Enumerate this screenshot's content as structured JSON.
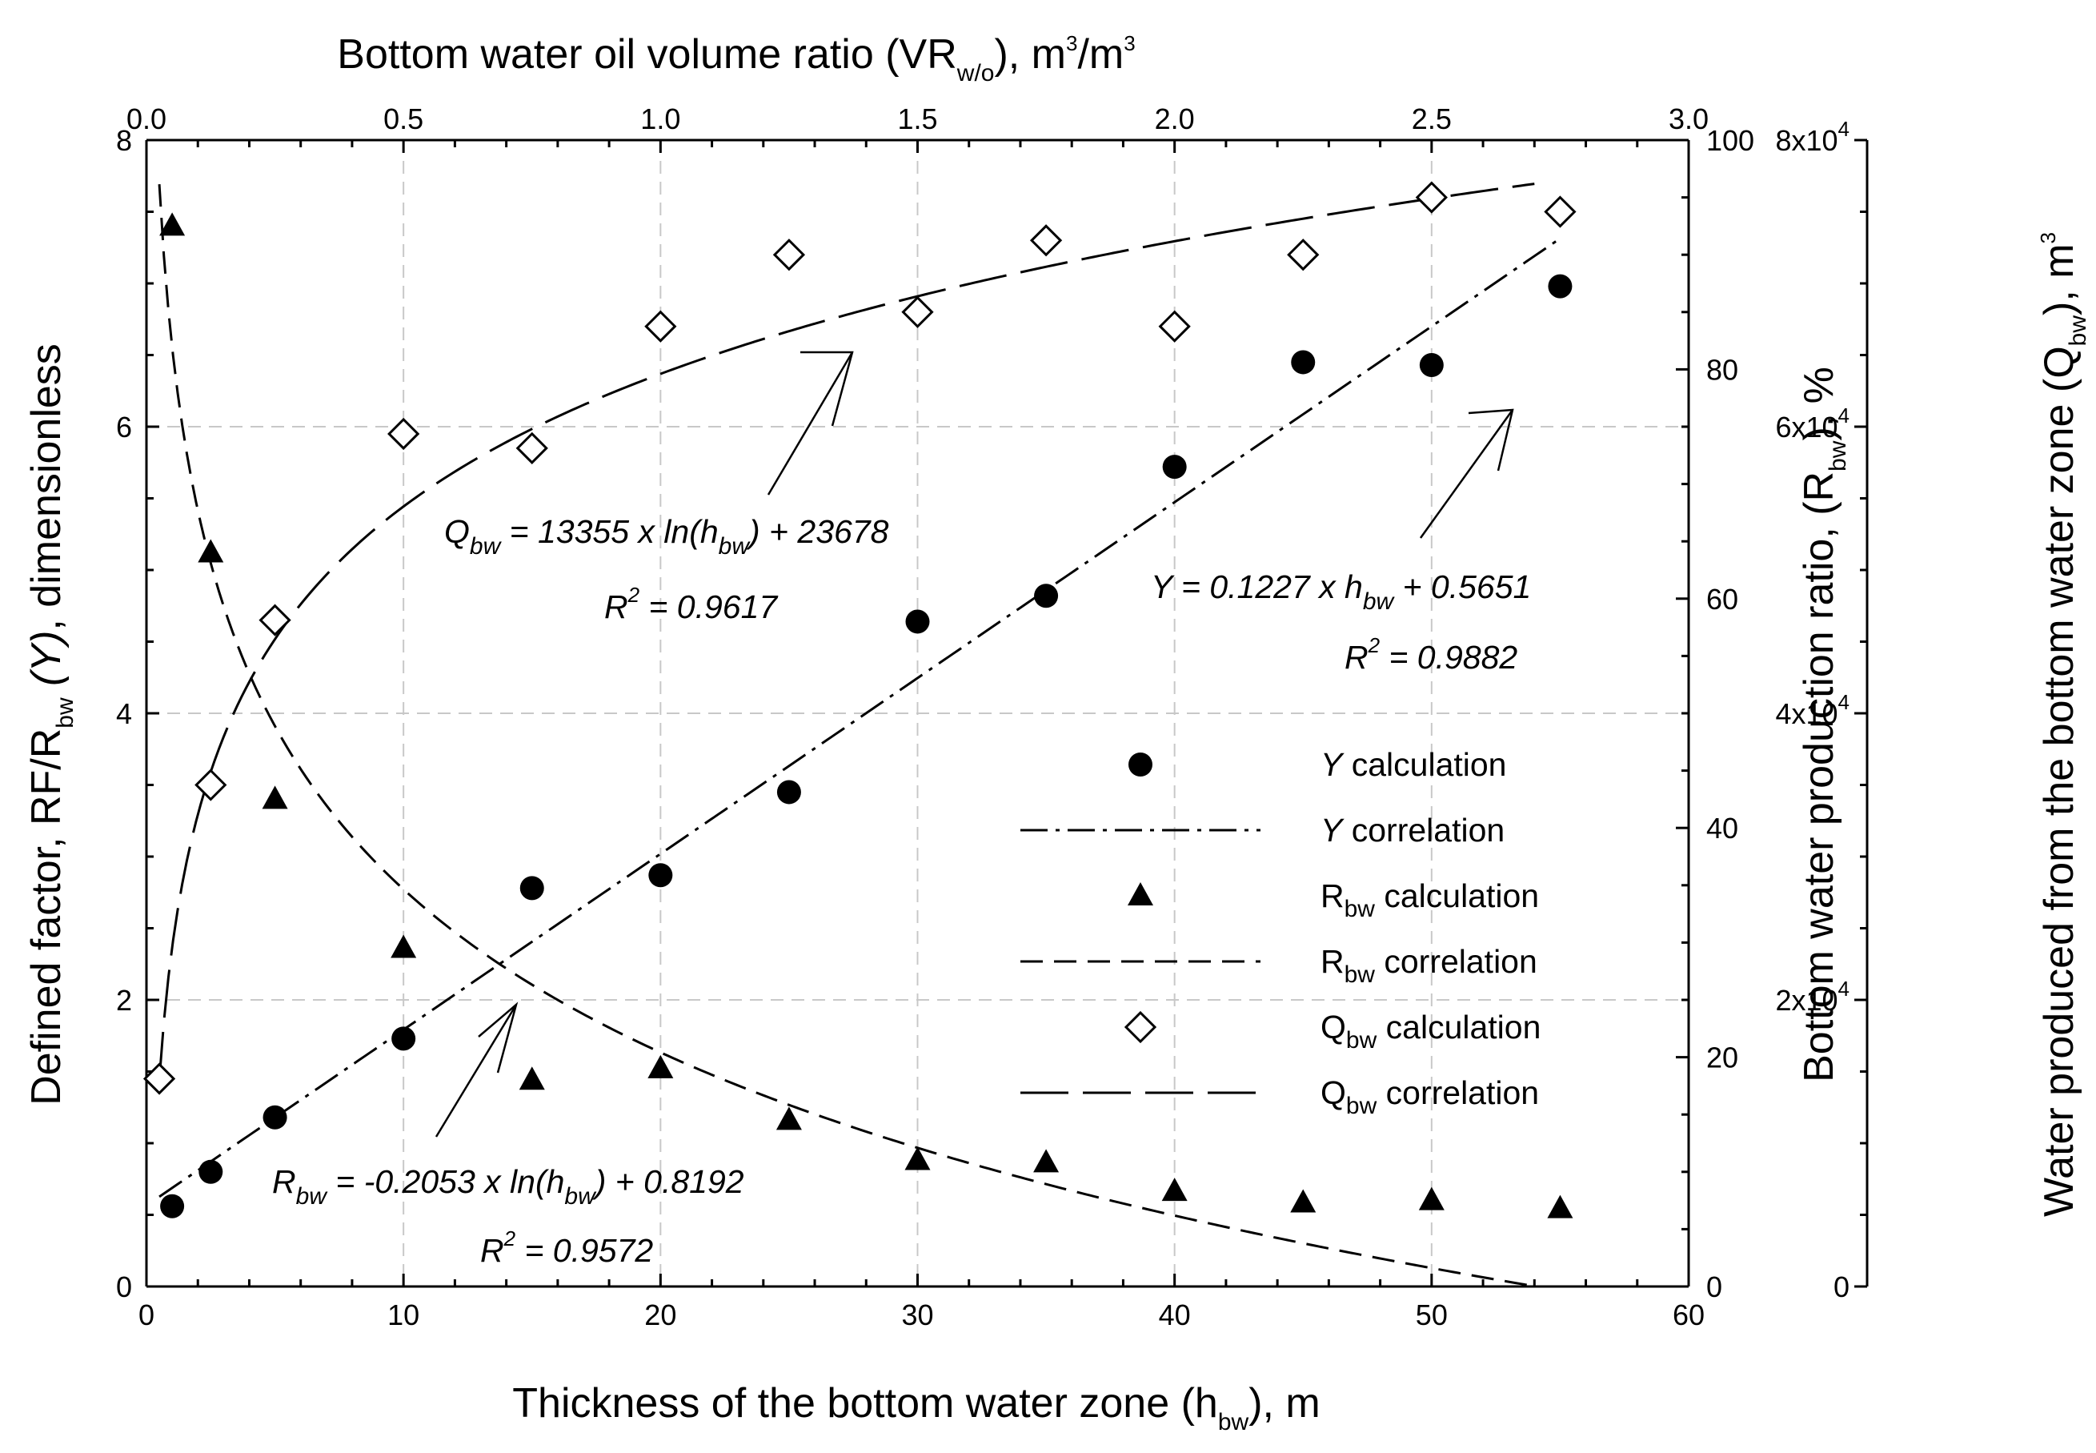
{
  "chart_data": {
    "type": "scatter",
    "title": "",
    "bottom_axis": {
      "label": "Thickness of the bottom water zone",
      "label_var": "(h",
      "label_sub": "bw",
      "label_end": "), m",
      "range": [
        0,
        60
      ],
      "major_ticks": [
        0,
        10,
        20,
        30,
        40,
        50,
        60
      ]
    },
    "top_axis": {
      "label": "Bottom water oil volume ratio (VR",
      "label_sub": "w/o",
      "label_end": "), m",
      "label_sup1": "3",
      "label_mid": "/m",
      "label_sup2": "3",
      "range": [
        0,
        3
      ],
      "major_ticks": [
        "0.0",
        "0.5",
        "1.0",
        "1.5",
        "2.0",
        "2.5",
        "3.0"
      ]
    },
    "left_axis": {
      "label_start": "Defined factor, RF/R",
      "label_sub": "bw",
      "label_var": "(Y)",
      "label_end": ", dimensionless",
      "range": [
        0,
        8
      ],
      "major_ticks": [
        0,
        2,
        4,
        6,
        8
      ]
    },
    "right_axis_1": {
      "label_start": "Bottom water production ratio, (R",
      "label_sub": "bw",
      "label_end": "), %",
      "range": [
        0,
        100
      ],
      "major_ticks": [
        0,
        20,
        40,
        60,
        80,
        100
      ]
    },
    "right_axis_2": {
      "label_start": "Water produced from the bottom water zone (Q",
      "label_sub": "bw",
      "label_end": "), m",
      "label_sup": "3",
      "range": [
        0,
        80000
      ],
      "major_ticks": [
        {
          "value": 0,
          "mantissa": "0",
          "exp": ""
        },
        {
          "value": 20000,
          "mantissa": "2x10",
          "exp": "4"
        },
        {
          "value": 40000,
          "mantissa": "4x10",
          "exp": "4"
        },
        {
          "value": 60000,
          "mantissa": "6x10",
          "exp": "4"
        },
        {
          "value": 80000,
          "mantissa": "8x10",
          "exp": "4"
        }
      ]
    },
    "series": [
      {
        "name": "Y calculation",
        "marker": "circle",
        "axis": "left",
        "x": [
          1,
          2.5,
          5,
          10,
          15,
          20,
          25,
          30,
          35,
          40,
          45,
          50,
          55
        ],
        "y": [
          0.56,
          0.8,
          1.18,
          1.73,
          2.78,
          2.87,
          3.45,
          4.64,
          4.82,
          5.72,
          6.45,
          6.43,
          6.98
        ]
      },
      {
        "name": "Y correlation",
        "line": "dash-dot",
        "axis": "left",
        "equation": "Y = 0.1227 x h + 0.5651",
        "slope": 0.1227,
        "intercept": 0.5651,
        "x_range": [
          0.5,
          55
        ]
      },
      {
        "name": "R_bw calculation",
        "marker": "triangle",
        "axis": "right_1",
        "x": [
          1,
          2.5,
          5,
          10,
          15,
          20,
          25,
          30,
          35,
          40,
          45,
          50,
          55
        ],
        "y": [
          92.5,
          64,
          42.5,
          29.5,
          18,
          19,
          14.5,
          11,
          10.8,
          8.3,
          7.3,
          7.5,
          6.8
        ]
      },
      {
        "name": "R_bw correlation",
        "line": "dash",
        "axis": "right_1",
        "equation": "R = -0.2053 x ln(h) + 0.8192",
        "a": -0.2053,
        "b": 0.8192,
        "x_range": [
          0.5,
          54
        ]
      },
      {
        "name": "Q_bw calculation",
        "marker": "diamond",
        "axis": "right_2",
        "x": [
          0.5,
          2.5,
          5,
          10,
          15,
          20,
          25,
          30,
          35,
          40,
          45,
          50,
          55
        ],
        "y": [
          14500,
          35000,
          46500,
          59500,
          58500,
          67000,
          72000,
          68000,
          73000,
          67000,
          72000,
          76000,
          75000
        ]
      },
      {
        "name": "Q_bw correlation",
        "line": "long-dash",
        "axis": "right_2",
        "equation": "Q = 13355 x ln(h) + 23678",
        "a": 13355,
        "b": 23678,
        "x_range": [
          0.5,
          54
        ]
      }
    ],
    "legend": {
      "position": "center-right",
      "items": [
        {
          "var": "Y",
          "sub": "",
          "text": " calculation",
          "symbol": "circle"
        },
        {
          "var": "Y",
          "sub": "",
          "text": " correlation",
          "symbol": "dash-dot"
        },
        {
          "var": "R",
          "sub": "bw",
          "text": " calculation",
          "symbol": "triangle"
        },
        {
          "var": "R",
          "sub": "bw",
          "text": " correlation",
          "symbol": "dash"
        },
        {
          "var": "Q",
          "sub": "bw",
          "text": " calculation",
          "symbol": "diamond"
        },
        {
          "var": "Q",
          "sub": "bw",
          "text": " correlation",
          "symbol": "long-dash"
        }
      ]
    },
    "annotations": [
      {
        "id": "q",
        "lhs": "Q",
        "lhs_sub": "bw",
        "eq_mid": " = 13355 x ln(h",
        "eq_sub": "bw",
        "eq_end": ") + 23678",
        "r2_pre": "R",
        "r2_sup": "2",
        "r2_val": " = 0.9617"
      },
      {
        "id": "y",
        "lhs": "Y",
        "lhs_sub": "",
        "eq_mid": " = 0.1227 x h",
        "eq_sub": "bw",
        "eq_end": " + 0.5651",
        "r2_pre": "R",
        "r2_sup": "2",
        "r2_val": " = 0.9882"
      },
      {
        "id": "r",
        "lhs": "R",
        "lhs_sub": "bw",
        "eq_mid": " = -0.2053 x ln(h",
        "eq_sub": "bw",
        "eq_end": ") + 0.8192",
        "r2_pre": "R",
        "r2_sup": "2",
        "r2_val": " = 0.9572"
      }
    ]
  }
}
